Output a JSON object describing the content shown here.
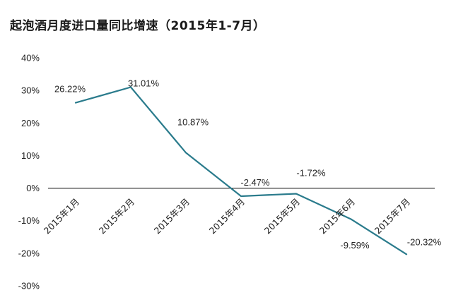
{
  "chart_data": {
    "type": "line",
    "title": "起泡酒月度进口量同比增速（2015年1-7月）",
    "categories": [
      "2015年1月",
      "2015年2月",
      "2015年3月",
      "2015年4月",
      "2015年5月",
      "2015年6月",
      "2015年7月"
    ],
    "series": [
      {
        "values": [
          26.22,
          31.01,
          10.87,
          -2.47,
          -1.72,
          -9.59,
          -20.32
        ],
        "labels": [
          "26.22%",
          "31.01%",
          "10.87%",
          "-2.47%",
          "-1.72%",
          "-9.59%",
          "-20.32%"
        ],
        "color": "#2a7b8c"
      }
    ],
    "ylim": [
      -30,
      40
    ],
    "yticks": [
      40,
      30,
      20,
      10,
      0,
      -10,
      -20,
      -30
    ],
    "ytick_labels": [
      "40%",
      "30%",
      "20%",
      "10%",
      "0%",
      "-10%",
      "-20%",
      "-30%"
    ],
    "grid": false,
    "legend": "none"
  }
}
